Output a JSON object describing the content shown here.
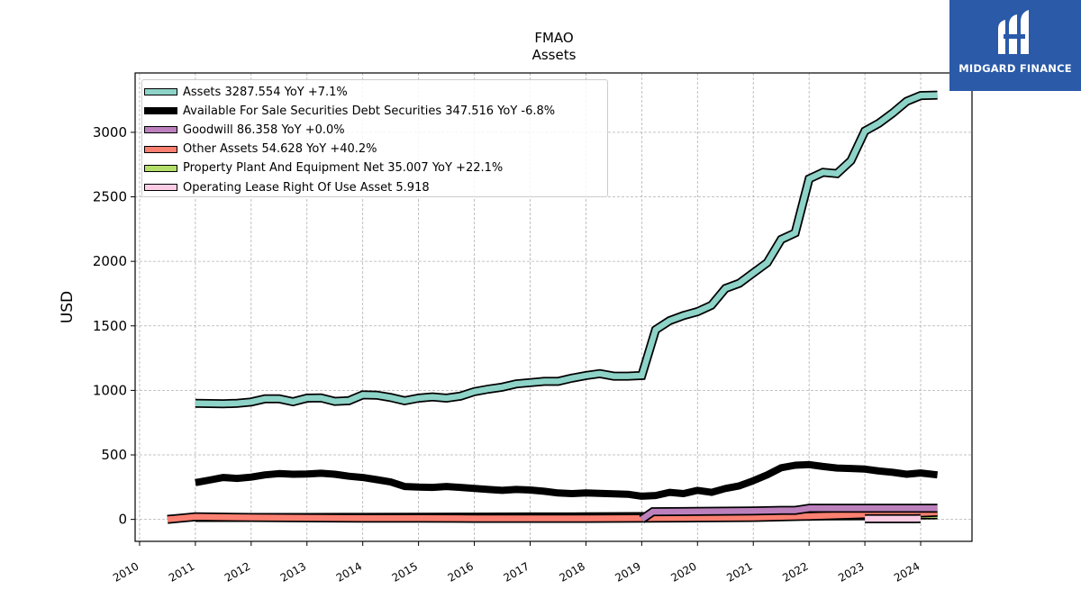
{
  "brand": {
    "name": "MIDGARD FINANCE",
    "background": "#2a5aa8",
    "icon": "midgard-logo-icon"
  },
  "chart_data": {
    "type": "area",
    "title": "FMAO",
    "subtitle": "Assets",
    "xlabel": "",
    "ylabel": "USD",
    "xlim": [
      2009.92,
      2024.92
    ],
    "ylim": [
      -170,
      3460
    ],
    "yticks": [
      0,
      500,
      1000,
      1500,
      2000,
      2500,
      3000
    ],
    "xticks": [
      "2010",
      "2011",
      "2012",
      "2013",
      "2014",
      "2015",
      "2016",
      "2017",
      "2018",
      "2019",
      "2020",
      "2021",
      "2022",
      "2023",
      "2024"
    ],
    "grid": true,
    "legend_position": "top-left",
    "series": [
      {
        "name": "Assets",
        "legend_label": "Assets  3287.554 YoY +7.1%",
        "color": "#8dd3c7",
        "style": "band",
        "points": [
          [
            2011.0,
            900
          ],
          [
            2011.25,
            898
          ],
          [
            2011.5,
            896
          ],
          [
            2011.75,
            900
          ],
          [
            2012.0,
            910
          ],
          [
            2012.25,
            935
          ],
          [
            2012.5,
            935
          ],
          [
            2012.75,
            912
          ],
          [
            2013.0,
            940
          ],
          [
            2013.25,
            942
          ],
          [
            2013.5,
            915
          ],
          [
            2013.75,
            920
          ],
          [
            2014.0,
            965
          ],
          [
            2014.25,
            963
          ],
          [
            2014.5,
            945
          ],
          [
            2014.75,
            920
          ],
          [
            2015.0,
            940
          ],
          [
            2015.25,
            950
          ],
          [
            2015.5,
            940
          ],
          [
            2015.75,
            955
          ],
          [
            2016.0,
            990
          ],
          [
            2016.25,
            1010
          ],
          [
            2016.5,
            1025
          ],
          [
            2016.75,
            1050
          ],
          [
            2017.0,
            1060
          ],
          [
            2017.25,
            1070
          ],
          [
            2017.5,
            1070
          ],
          [
            2017.75,
            1095
          ],
          [
            2018.0,
            1115
          ],
          [
            2018.25,
            1130
          ],
          [
            2018.5,
            1110
          ],
          [
            2018.75,
            1110
          ],
          [
            2019.0,
            1115
          ],
          [
            2019.25,
            1470
          ],
          [
            2019.5,
            1540
          ],
          [
            2019.75,
            1580
          ],
          [
            2020.0,
            1610
          ],
          [
            2020.25,
            1660
          ],
          [
            2020.5,
            1790
          ],
          [
            2020.75,
            1830
          ],
          [
            2021.0,
            1910
          ],
          [
            2021.25,
            1990
          ],
          [
            2021.5,
            2170
          ],
          [
            2021.75,
            2220
          ],
          [
            2022.0,
            2640
          ],
          [
            2022.25,
            2690
          ],
          [
            2022.5,
            2680
          ],
          [
            2022.75,
            2780
          ],
          [
            2023.0,
            3010
          ],
          [
            2023.25,
            3070
          ],
          [
            2023.5,
            3150
          ],
          [
            2023.75,
            3240
          ],
          [
            2024.0,
            3285
          ],
          [
            2024.3,
            3288
          ]
        ]
      },
      {
        "name": "Available For Sale Securities Debt Securities",
        "legend_label": "Available For Sale Securities Debt Securities  347.516 YoY -6.8%",
        "color": "#000000",
        "style": "line",
        "points": [
          [
            2011.0,
            285
          ],
          [
            2011.25,
            305
          ],
          [
            2011.5,
            325
          ],
          [
            2011.75,
            318
          ],
          [
            2012.0,
            328
          ],
          [
            2012.25,
            345
          ],
          [
            2012.5,
            355
          ],
          [
            2012.75,
            350
          ],
          [
            2013.0,
            352
          ],
          [
            2013.25,
            358
          ],
          [
            2013.5,
            350
          ],
          [
            2013.75,
            335
          ],
          [
            2014.0,
            325
          ],
          [
            2014.25,
            308
          ],
          [
            2014.5,
            290
          ],
          [
            2014.75,
            255
          ],
          [
            2015.0,
            250
          ],
          [
            2015.25,
            248
          ],
          [
            2015.5,
            255
          ],
          [
            2015.75,
            248
          ],
          [
            2016.0,
            240
          ],
          [
            2016.25,
            232
          ],
          [
            2016.5,
            225
          ],
          [
            2016.75,
            232
          ],
          [
            2017.0,
            228
          ],
          [
            2017.25,
            218
          ],
          [
            2017.5,
            205
          ],
          [
            2017.75,
            200
          ],
          [
            2018.0,
            205
          ],
          [
            2018.25,
            202
          ],
          [
            2018.5,
            198
          ],
          [
            2018.75,
            195
          ],
          [
            2019.0,
            180
          ],
          [
            2019.25,
            185
          ],
          [
            2019.5,
            210
          ],
          [
            2019.75,
            200
          ],
          [
            2020.0,
            225
          ],
          [
            2020.25,
            210
          ],
          [
            2020.5,
            240
          ],
          [
            2020.75,
            260
          ],
          [
            2021.0,
            300
          ],
          [
            2021.25,
            345
          ],
          [
            2021.5,
            400
          ],
          [
            2021.75,
            420
          ],
          [
            2022.0,
            425
          ],
          [
            2022.25,
            410
          ],
          [
            2022.5,
            398
          ],
          [
            2022.75,
            395
          ],
          [
            2023.0,
            390
          ],
          [
            2023.25,
            375
          ],
          [
            2023.5,
            365
          ],
          [
            2023.75,
            350
          ],
          [
            2024.0,
            360
          ],
          [
            2024.3,
            345
          ]
        ]
      },
      {
        "name": "Goodwill",
        "legend_label": "Goodwill  86.358 YoY +0.0%",
        "color": "#bc80bd",
        "style": "band",
        "points": [
          [
            2019.0,
            0
          ],
          [
            2019.2,
            60
          ],
          [
            2020.0,
            62
          ],
          [
            2021.0,
            65
          ],
          [
            2021.5,
            70
          ],
          [
            2021.75,
            70
          ],
          [
            2022.0,
            86
          ],
          [
            2022.5,
            86
          ],
          [
            2023.0,
            86
          ],
          [
            2023.5,
            86
          ],
          [
            2024.0,
            86
          ],
          [
            2024.3,
            86
          ]
        ]
      },
      {
        "name": "Other Assets",
        "legend_label": "Other Assets  54.628 YoY +40.2%",
        "color": "#fb8072",
        "style": "band",
        "points": [
          [
            2010.5,
            0
          ],
          [
            2010.75,
            10
          ],
          [
            2011.0,
            20
          ],
          [
            2012.0,
            15
          ],
          [
            2013.0,
            12
          ],
          [
            2014.0,
            10
          ],
          [
            2015.0,
            10
          ],
          [
            2016.0,
            8
          ],
          [
            2017.0,
            8
          ],
          [
            2018.0,
            8
          ],
          [
            2019.0,
            10
          ],
          [
            2020.0,
            12
          ],
          [
            2021.0,
            15
          ],
          [
            2022.0,
            25
          ],
          [
            2023.0,
            39
          ],
          [
            2024.0,
            50
          ],
          [
            2024.3,
            55
          ]
        ]
      },
      {
        "name": "Property Plant And Equipment Net",
        "legend_label": "Property Plant And Equipment Net  35.007 YoY +22.1%",
        "color": "#b3de69",
        "style": "band",
        "points": [
          [
            2011.0,
            15
          ],
          [
            2012.0,
            15
          ],
          [
            2013.0,
            15
          ],
          [
            2014.0,
            16
          ],
          [
            2015.0,
            17
          ],
          [
            2016.0,
            18
          ],
          [
            2017.0,
            19
          ],
          [
            2018.0,
            20
          ],
          [
            2019.0,
            22
          ],
          [
            2020.0,
            24
          ],
          [
            2021.0,
            25
          ],
          [
            2022.0,
            26
          ],
          [
            2023.0,
            28
          ],
          [
            2023.75,
            29
          ],
          [
            2024.0,
            34
          ],
          [
            2024.3,
            35
          ]
        ]
      },
      {
        "name": "Operating Lease Right Of Use Asset",
        "legend_label": "Operating Lease Right Of Use Asset  5.918",
        "color": "#fccde5",
        "style": "band",
        "points": [
          [
            2023.0,
            5
          ],
          [
            2023.5,
            5.5
          ],
          [
            2024.0,
            5.918
          ]
        ]
      }
    ]
  }
}
